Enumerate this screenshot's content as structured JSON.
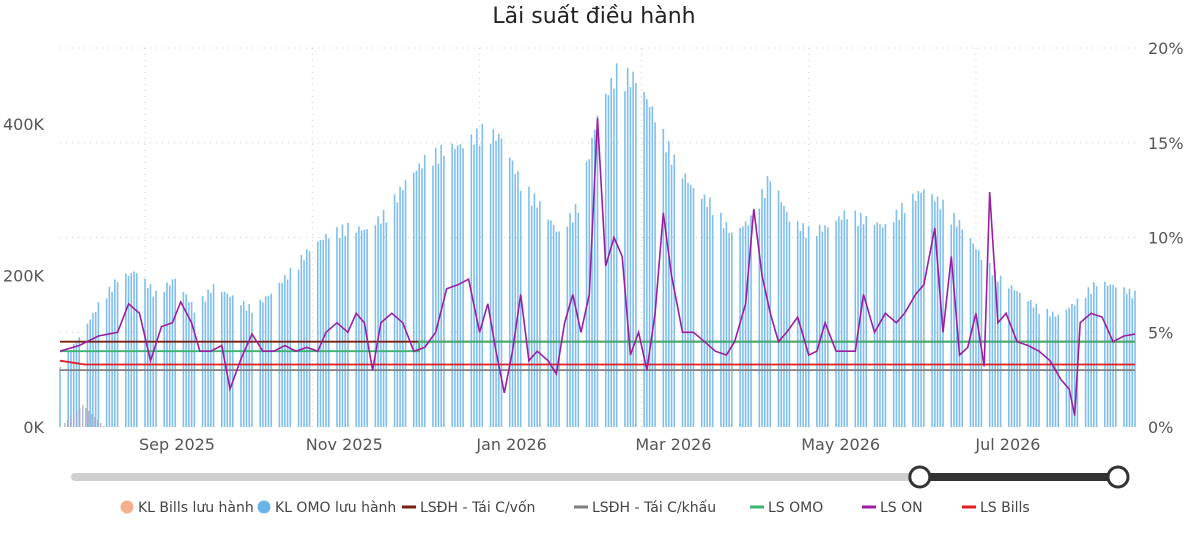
{
  "chart_data": {
    "type": "bar+line",
    "title": "Lãi suất điều hành",
    "x_axis": {
      "ticks": [
        "Sep 2025",
        "Nov 2025",
        "Jan 2026",
        "Mar 2026",
        "May 2026",
        "Jul 2026"
      ],
      "tick_dates": [
        "2025-09-01",
        "2025-11-01",
        "2026-01-01",
        "2026-03-01",
        "2026-05-01",
        "2026-07-01"
      ],
      "range": [
        "2025-08-01",
        "2026-08-28"
      ]
    },
    "y_left": {
      "ticks": [
        "0K",
        "200K",
        "400K"
      ],
      "ylim": [
        0,
        500000
      ]
    },
    "y_right": {
      "ticks": [
        "0%",
        "5%",
        "10%",
        "15%",
        "20%"
      ],
      "ylim": [
        0,
        20
      ]
    },
    "legend": {
      "placement": "bottom",
      "items": [
        {
          "label": "KL Bills lưu hành",
          "color": "#f4b08c",
          "shape": "circle"
        },
        {
          "label": "KL OMO lưu hành",
          "color": "#6ab4ea",
          "shape": "circle"
        },
        {
          "label": "LSĐH - Tái C/vốn",
          "color": "#7a1f12",
          "shape": "line"
        },
        {
          "label": "LSĐH - Tái C/khấu",
          "color": "#7f7f7f",
          "shape": "line"
        },
        {
          "label": "LS OMO",
          "color": "#3cb371",
          "shape": "line"
        },
        {
          "label": "LS ON",
          "color": "#9b1fa3",
          "shape": "line"
        },
        {
          "label": "LS Bills",
          "color": "#e01e26",
          "shape": "line"
        }
      ]
    },
    "series": [
      {
        "name": "KL OMO lưu hành",
        "type": "bar",
        "axis": "left",
        "color": "#6ab4ea",
        "points": [
          [
            "2025-08-01",
            85000
          ],
          [
            "2025-08-08",
            120000
          ],
          [
            "2025-08-15",
            165000
          ],
          [
            "2025-08-22",
            200000
          ],
          [
            "2025-08-29",
            210000
          ],
          [
            "2025-09-05",
            180000
          ],
          [
            "2025-09-12",
            200000
          ],
          [
            "2025-09-19",
            160000
          ],
          [
            "2025-09-26",
            190000
          ],
          [
            "2025-10-03",
            175000
          ],
          [
            "2025-10-10",
            160000
          ],
          [
            "2025-10-17",
            180000
          ],
          [
            "2025-10-24",
            210000
          ],
          [
            "2025-10-31",
            240000
          ],
          [
            "2025-11-07",
            260000
          ],
          [
            "2025-11-14",
            270000
          ],
          [
            "2025-11-21",
            265000
          ],
          [
            "2025-11-28",
            290000
          ],
          [
            "2025-12-05",
            330000
          ],
          [
            "2025-12-12",
            360000
          ],
          [
            "2025-12-19",
            375000
          ],
          [
            "2025-12-26",
            380000
          ],
          [
            "2026-01-02",
            400000
          ],
          [
            "2026-01-09",
            390000
          ],
          [
            "2026-01-16",
            330000
          ],
          [
            "2026-01-23",
            300000
          ],
          [
            "2026-01-30",
            260000
          ],
          [
            "2026-02-06",
            300000
          ],
          [
            "2026-02-13",
            420000
          ],
          [
            "2026-02-20",
            480000
          ],
          [
            "2026-02-27",
            470000
          ],
          [
            "2026-03-06",
            420000
          ],
          [
            "2026-03-13",
            360000
          ],
          [
            "2026-03-20",
            320000
          ],
          [
            "2026-03-27",
            300000
          ],
          [
            "2026-04-03",
            260000
          ],
          [
            "2026-04-10",
            280000
          ],
          [
            "2026-04-17",
            340000
          ],
          [
            "2026-04-24",
            280000
          ],
          [
            "2026-05-01",
            265000
          ],
          [
            "2026-05-08",
            270000
          ],
          [
            "2026-05-15",
            290000
          ],
          [
            "2026-05-22",
            280000
          ],
          [
            "2026-05-29",
            270000
          ],
          [
            "2026-06-05",
            300000
          ],
          [
            "2026-06-12",
            320000
          ],
          [
            "2026-06-19",
            300000
          ],
          [
            "2026-06-26",
            270000
          ],
          [
            "2026-07-03",
            230000
          ],
          [
            "2026-07-10",
            200000
          ],
          [
            "2026-07-17",
            180000
          ],
          [
            "2026-07-24",
            160000
          ],
          [
            "2026-07-31",
            150000
          ],
          [
            "2026-08-07",
            170000
          ],
          [
            "2026-08-14",
            195000
          ],
          [
            "2026-08-21",
            190000
          ],
          [
            "2026-08-28",
            180000
          ]
        ]
      },
      {
        "name": "KL Bills lưu hành",
        "type": "bar",
        "axis": "left",
        "color": "#f4b08c",
        "points": [
          [
            "2025-08-01",
            0
          ],
          [
            "2025-08-28",
            0
          ]
        ]
      },
      {
        "name": "LSĐH - Tái C/vốn",
        "type": "line",
        "axis": "right",
        "color": "#7a1f12",
        "points": [
          [
            "2025-08-01",
            4.5
          ],
          [
            "2026-08-28",
            4.5
          ]
        ]
      },
      {
        "name": "LSĐH - Tái C/khấu",
        "type": "line",
        "axis": "right",
        "color": "#7f7f7f",
        "points": [
          [
            "2025-08-01",
            3.0
          ],
          [
            "2026-08-28",
            3.0
          ]
        ]
      },
      {
        "name": "LS OMO",
        "type": "line",
        "axis": "right",
        "color": "#3cb371",
        "points": [
          [
            "2025-08-01",
            4.0
          ],
          [
            "2025-12-10",
            4.0
          ],
          [
            "2025-12-10",
            4.5
          ],
          [
            "2026-08-28",
            4.5
          ]
        ]
      },
      {
        "name": "LS Bills",
        "type": "line",
        "axis": "right",
        "color": "#e01e26",
        "points": [
          [
            "2025-08-01",
            3.5
          ],
          [
            "2025-08-10",
            3.3
          ],
          [
            "2026-08-28",
            3.3
          ]
        ]
      },
      {
        "name": "LS ON",
        "type": "line",
        "axis": "right",
        "color": "#9b1fa3",
        "points": [
          [
            "2025-08-01",
            4.0
          ],
          [
            "2025-08-08",
            4.3
          ],
          [
            "2025-08-15",
            4.8
          ],
          [
            "2025-08-22",
            5.0
          ],
          [
            "2025-08-26",
            6.5
          ],
          [
            "2025-08-30",
            6.0
          ],
          [
            "2025-09-03",
            3.5
          ],
          [
            "2025-09-07",
            5.3
          ],
          [
            "2025-09-11",
            5.5
          ],
          [
            "2025-09-14",
            6.6
          ],
          [
            "2025-09-18",
            5.5
          ],
          [
            "2025-09-21",
            4.0
          ],
          [
            "2025-09-25",
            4.0
          ],
          [
            "2025-09-29",
            4.3
          ],
          [
            "2025-10-02",
            2.0
          ],
          [
            "2025-10-06",
            3.6
          ],
          [
            "2025-10-10",
            4.9
          ],
          [
            "2025-10-14",
            4.0
          ],
          [
            "2025-10-18",
            4.0
          ],
          [
            "2025-10-22",
            4.3
          ],
          [
            "2025-10-26",
            4.0
          ],
          [
            "2025-10-30",
            4.2
          ],
          [
            "2025-11-03",
            4.0
          ],
          [
            "2025-11-06",
            5.0
          ],
          [
            "2025-11-10",
            5.5
          ],
          [
            "2025-11-14",
            5.0
          ],
          [
            "2025-11-17",
            6.0
          ],
          [
            "2025-11-20",
            5.5
          ],
          [
            "2025-11-23",
            3.0
          ],
          [
            "2025-11-26",
            5.5
          ],
          [
            "2025-11-30",
            6.0
          ],
          [
            "2025-12-04",
            5.5
          ],
          [
            "2025-12-08",
            4.0
          ],
          [
            "2025-12-12",
            4.2
          ],
          [
            "2025-12-16",
            5.0
          ],
          [
            "2025-12-20",
            7.3
          ],
          [
            "2025-12-24",
            7.5
          ],
          [
            "2025-12-28",
            7.8
          ],
          [
            "2026-01-01",
            5.0
          ],
          [
            "2026-01-04",
            6.5
          ],
          [
            "2026-01-07",
            4.0
          ],
          [
            "2026-01-10",
            1.8
          ],
          [
            "2026-01-13",
            4.0
          ],
          [
            "2026-01-16",
            7.0
          ],
          [
            "2026-01-19",
            3.5
          ],
          [
            "2026-01-22",
            4.0
          ],
          [
            "2026-01-26",
            3.5
          ],
          [
            "2026-01-29",
            2.8
          ],
          [
            "2026-02-01",
            5.5
          ],
          [
            "2026-02-04",
            7.0
          ],
          [
            "2026-02-07",
            5.0
          ],
          [
            "2026-02-10",
            7.0
          ],
          [
            "2026-02-13",
            16.3
          ],
          [
            "2026-02-16",
            8.5
          ],
          [
            "2026-02-19",
            10.0
          ],
          [
            "2026-02-22",
            9.0
          ],
          [
            "2026-02-25",
            3.8
          ],
          [
            "2026-02-28",
            5.0
          ],
          [
            "2026-03-03",
            3.0
          ],
          [
            "2026-03-06",
            6.0
          ],
          [
            "2026-03-09",
            11.3
          ],
          [
            "2026-03-12",
            8.0
          ],
          [
            "2026-03-16",
            5.0
          ],
          [
            "2026-03-20",
            5.0
          ],
          [
            "2026-03-24",
            4.5
          ],
          [
            "2026-03-28",
            4.0
          ],
          [
            "2026-04-01",
            3.8
          ],
          [
            "2026-04-04",
            4.5
          ],
          [
            "2026-04-08",
            6.5
          ],
          [
            "2026-04-11",
            11.5
          ],
          [
            "2026-04-14",
            8.0
          ],
          [
            "2026-04-17",
            6.0
          ],
          [
            "2026-04-20",
            4.5
          ],
          [
            "2026-04-23",
            5.0
          ],
          [
            "2026-04-27",
            5.8
          ],
          [
            "2026-05-01",
            3.8
          ],
          [
            "2026-05-04",
            4.0
          ],
          [
            "2026-05-07",
            5.5
          ],
          [
            "2026-05-11",
            4.0
          ],
          [
            "2026-05-14",
            4.0
          ],
          [
            "2026-05-18",
            4.0
          ],
          [
            "2026-05-21",
            7.0
          ],
          [
            "2026-05-25",
            5.0
          ],
          [
            "2026-05-29",
            6.0
          ],
          [
            "2026-06-02",
            5.5
          ],
          [
            "2026-06-05",
            6.0
          ],
          [
            "2026-06-09",
            7.0
          ],
          [
            "2026-06-12",
            7.5
          ],
          [
            "2026-06-16",
            10.5
          ],
          [
            "2026-06-19",
            5.0
          ],
          [
            "2026-06-22",
            9.0
          ],
          [
            "2026-06-25",
            3.8
          ],
          [
            "2026-06-28",
            4.2
          ],
          [
            "2026-07-01",
            6.0
          ],
          [
            "2026-07-04",
            3.2
          ],
          [
            "2026-07-06",
            12.4
          ],
          [
            "2026-07-09",
            5.5
          ],
          [
            "2026-07-12",
            6.0
          ],
          [
            "2026-07-16",
            4.5
          ],
          [
            "2026-07-20",
            4.3
          ],
          [
            "2026-07-24",
            4.0
          ],
          [
            "2026-07-28",
            3.5
          ],
          [
            "2026-08-01",
            2.5
          ],
          [
            "2026-08-04",
            2.0
          ],
          [
            "2026-08-06",
            0.6
          ],
          [
            "2026-08-08",
            5.5
          ],
          [
            "2026-08-12",
            6.0
          ],
          [
            "2026-08-16",
            5.8
          ],
          [
            "2026-08-20",
            4.5
          ],
          [
            "2026-08-24",
            4.8
          ],
          [
            "2026-08-28",
            4.9
          ]
        ]
      }
    ]
  },
  "slider": {
    "range_start": 0.81,
    "range_end": 1.0
  }
}
